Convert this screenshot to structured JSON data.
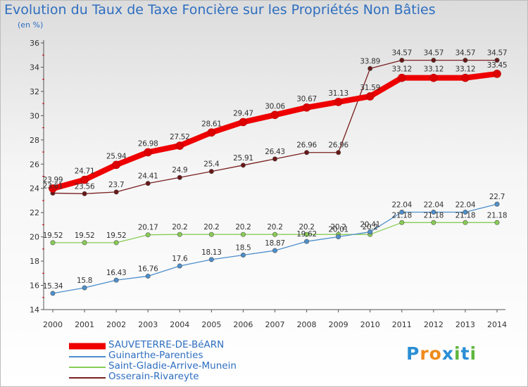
{
  "chart_data": {
    "type": "line",
    "title": "Evolution du Taux de Taxe Foncière sur les Propriétés Non Bâties",
    "subtitle": "(en %)",
    "x": [
      2000,
      2001,
      2002,
      2003,
      2004,
      2005,
      2006,
      2007,
      2008,
      2009,
      2010,
      2011,
      2012,
      2013,
      2014
    ],
    "ylim": [
      14,
      36
    ],
    "yticks": [
      14,
      16,
      18,
      20,
      22,
      24,
      26,
      28,
      30,
      32,
      34,
      36
    ],
    "grid": false,
    "legend": "bottom-left",
    "series": [
      {
        "name": "SAUVETERRE-DE-BéARN",
        "color": "#ee0000",
        "labels": [
          "23.99",
          "24.71",
          "25.94",
          "26.98",
          "27.52",
          "28.61",
          "29.47",
          "30.06",
          "30.67",
          "31.13",
          "31.59",
          "33.12",
          "33.12",
          "33.12",
          "33.45"
        ],
        "values": [
          23.99,
          24.71,
          25.94,
          26.98,
          27.52,
          28.61,
          29.47,
          30.06,
          30.67,
          31.13,
          31.59,
          33.12,
          33.12,
          33.12,
          33.45
        ]
      },
      {
        "name": "Guinarthe-Parenties",
        "color": "#4d8fcc",
        "labels": [
          "15.34",
          "15.8",
          "16.43",
          "16.76",
          "17.6",
          "18.13",
          "18.5",
          "18.87",
          "19.62",
          "20.01",
          "20.41",
          "22.04",
          "22.04",
          "22.04",
          "22.7"
        ],
        "values": [
          15.34,
          15.8,
          16.43,
          16.76,
          17.6,
          18.13,
          18.5,
          18.87,
          19.62,
          20.01,
          20.41,
          22.04,
          22.04,
          22.04,
          22.7
        ]
      },
      {
        "name": "Saint-Gladie-Arrive-Munein",
        "color": "#88cc55",
        "labels": [
          "19.52",
          "19.52",
          "19.52",
          "20.17",
          "20.2",
          "20.2",
          "20.2",
          "20.2",
          "20.2",
          "20.2",
          "20.2",
          "21.18",
          "21.18",
          "21.18",
          "21.18"
        ],
        "values": [
          19.52,
          19.52,
          19.52,
          20.17,
          20.2,
          20.2,
          20.2,
          20.2,
          20.2,
          20.2,
          20.2,
          21.18,
          21.18,
          21.18,
          21.18
        ]
      },
      {
        "name": "Osserain-Rivareyte",
        "color": "#7a1f1f",
        "labels": [
          "23.61",
          "23.56",
          "23.7",
          "24.41",
          "24.9",
          "25.4",
          "25.91",
          "26.43",
          "26.96",
          "26.96",
          "33.89",
          "34.57",
          "34.57",
          "34.57",
          "34.57"
        ],
        "values": [
          23.61,
          23.56,
          23.7,
          24.41,
          24.9,
          25.4,
          25.91,
          26.43,
          26.96,
          26.96,
          33.89,
          34.57,
          34.57,
          34.57,
          34.57
        ]
      }
    ]
  },
  "logo": {
    "letters": [
      "P",
      "r",
      "o",
      "x",
      "i",
      "t",
      "i"
    ],
    "colors": [
      "#2a8fd4",
      "#ef8b1c",
      "#ef8b1c",
      "#2a8fd4",
      "#5db53c",
      "#2a8fd4",
      "#5db53c"
    ]
  }
}
